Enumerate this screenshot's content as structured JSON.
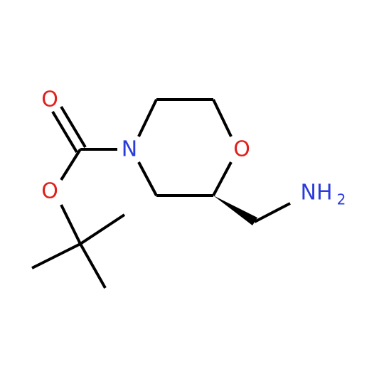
{
  "molecule": {
    "atoms": [
      {
        "label": "O"
      },
      {
        "label": "O"
      },
      {
        "label": "N"
      },
      {
        "label": "O"
      }
    ],
    "amine": {
      "label": "NH",
      "subscript": "2"
    }
  }
}
